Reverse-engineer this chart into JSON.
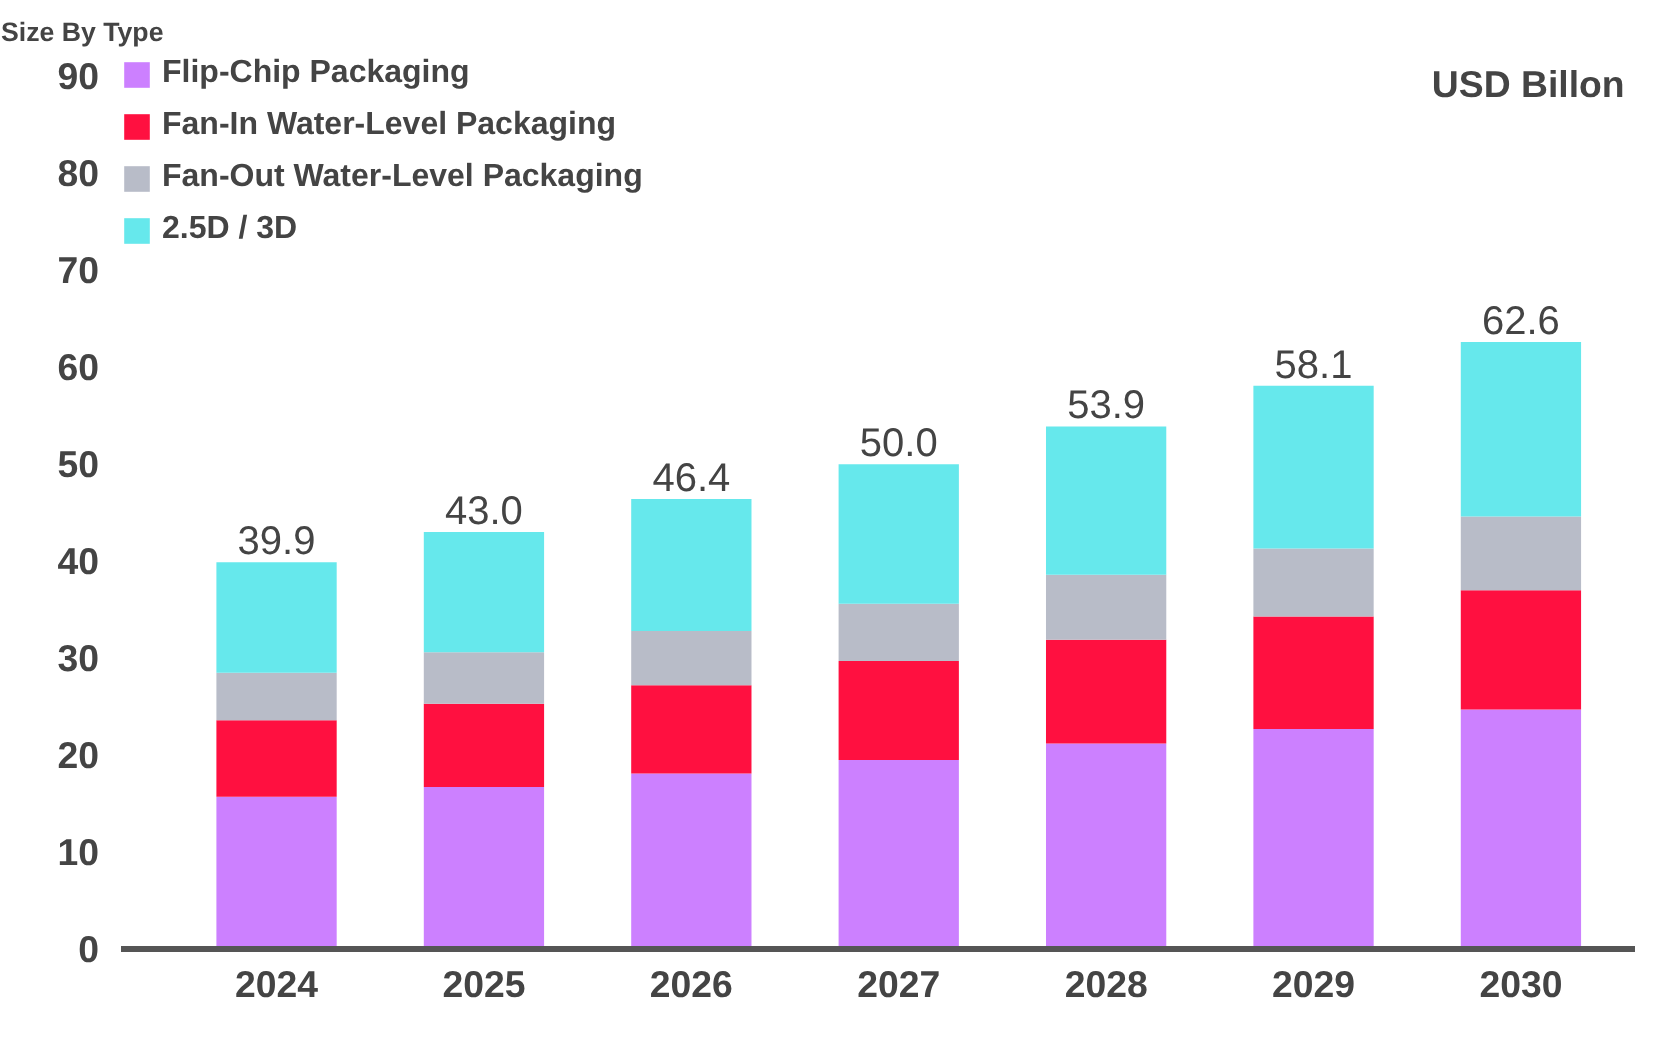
{
  "chart_data": {
    "type": "bar",
    "title": "Size By Type",
    "annotations": [
      "USD Billon"
    ],
    "categories": [
      "2024",
      "2025",
      "2026",
      "2027",
      "2028",
      "2029",
      "2030"
    ],
    "stacked": true,
    "series": [
      {
        "name": "Flip-Chip Packaging",
        "color": "#cc80ff",
        "values": [
          15.7,
          16.7,
          18.1,
          19.5,
          21.2,
          22.7,
          24.7
        ]
      },
      {
        "name": "Fan-In Water-Level Packaging",
        "color": "#ff1040",
        "values": [
          7.9,
          8.6,
          9.1,
          10.2,
          10.7,
          11.6,
          12.3
        ]
      },
      {
        "name": "Fan-Out Water-Level Packaging",
        "color": "#b8bcc8",
        "values": [
          4.9,
          5.3,
          5.6,
          5.9,
          6.7,
          7.0,
          7.6
        ]
      },
      {
        "name": "2.5D / 3D",
        "color": "#66e8ec",
        "values": [
          11.4,
          12.4,
          13.6,
          14.4,
          15.3,
          16.8,
          18.0
        ]
      }
    ],
    "totals": [
      "39.9",
      "43.0",
      "46.4",
      "50.0",
      "53.9",
      "58.1",
      "62.6"
    ],
    "ylim": [
      0,
      92
    ],
    "yticks": [
      0,
      10,
      20,
      30,
      40,
      50,
      60,
      70,
      80,
      90
    ],
    "grid": false,
    "legend": "top left"
  }
}
